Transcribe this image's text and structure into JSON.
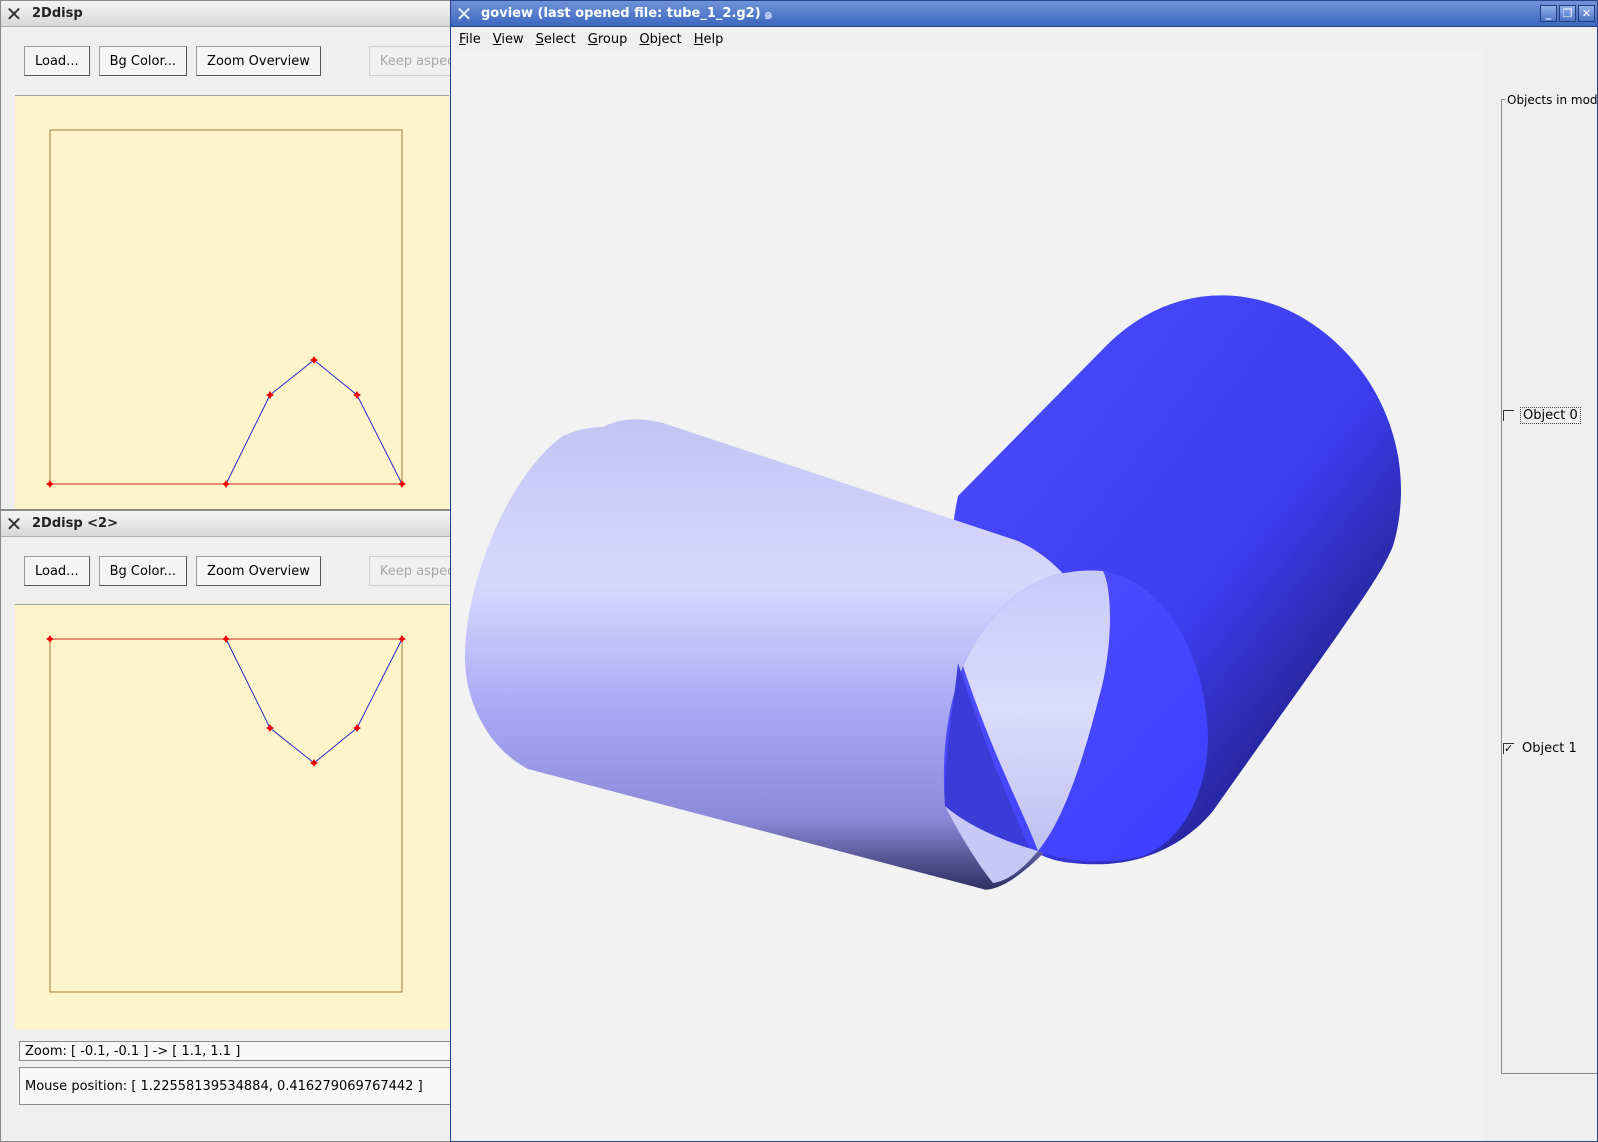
{
  "win_2d_a": {
    "title": "2Ddisp",
    "buttons": {
      "load": "Load...",
      "bg_color": "Bg Color...",
      "zoom_overview": "Zoom Overview",
      "keep_aspect": "Keep aspect ratio"
    }
  },
  "win_2d_b": {
    "title": "2Ddisp <2>",
    "buttons": {
      "load": "Load...",
      "bg_color": "Bg Color...",
      "zoom_overview": "Zoom Overview",
      "keep_aspect": "Keep aspect ratio"
    },
    "zoom_text": "Zoom: [ -0.1, -0.1 ] -> [ 1.1, 1.1 ]",
    "mouse_text": "Mouse position: [ 1.22558139534884, 0.416279069767442 ]"
  },
  "goview": {
    "title": "goview (last opened file: tube_1_2.g2)",
    "menu": [
      "File",
      "View",
      "Select",
      "Group",
      "Object",
      "Help"
    ],
    "objects_group_label": "Objects in mode",
    "objects": [
      {
        "label": "Object 0",
        "checked": false
      },
      {
        "label": "Object 1",
        "checked": true
      }
    ]
  },
  "colors": {
    "canvas_bg": "#fff4c9",
    "frame": "#a07a3a",
    "baseline": "#cc2222",
    "curve": "#2a2ac8",
    "point": "#ee0000",
    "tube_dark": "#4646ff",
    "tube_light": "#d8d8ff"
  }
}
